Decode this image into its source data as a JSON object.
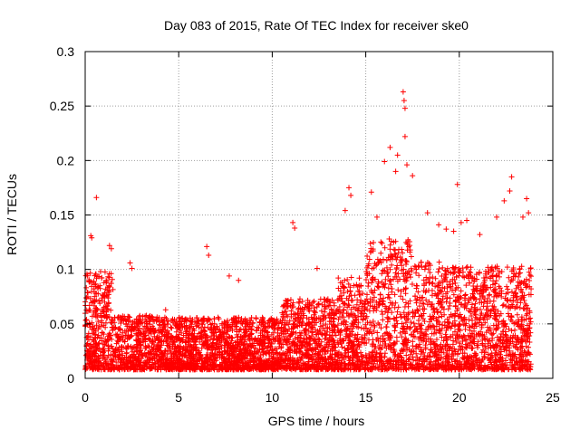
{
  "chart_data": {
    "type": "scatter",
    "title": "Day 083 of 2015, Rate Of TEC Index for receiver ske0",
    "xlabel": "GPS time / hours",
    "ylabel": "ROTI / TECUs",
    "xlim": [
      0,
      25
    ],
    "ylim": [
      0,
      0.3
    ],
    "xticks": [
      0,
      5,
      10,
      15,
      20,
      25
    ],
    "xtick_labels": [
      "0",
      "5",
      "10",
      "15",
      "20",
      "25"
    ],
    "yticks": [
      0,
      0.05,
      0.1,
      0.15,
      0.2,
      0.25,
      0.3
    ],
    "ytick_labels": [
      "0",
      "0.05",
      "0.1",
      "0.15",
      "0.2",
      "0.25",
      "0.3"
    ],
    "grid": true,
    "marker": "+",
    "color": "#ff0000",
    "series": [
      {
        "points": [
          [
            0.3,
            0.131
          ],
          [
            0.35,
            0.129
          ],
          [
            0.6,
            0.166
          ],
          [
            1.3,
            0.122
          ],
          [
            1.4,
            0.119
          ],
          [
            2.4,
            0.106
          ],
          [
            2.5,
            0.101
          ],
          [
            4.3,
            0.063
          ],
          [
            6.5,
            0.121
          ],
          [
            6.6,
            0.113
          ],
          [
            7.7,
            0.094
          ],
          [
            8.2,
            0.09
          ],
          [
            11.1,
            0.143
          ],
          [
            11.2,
            0.138
          ],
          [
            12.4,
            0.101
          ],
          [
            13.9,
            0.154
          ],
          [
            14.1,
            0.175
          ],
          [
            14.2,
            0.168
          ],
          [
            15.3,
            0.171
          ],
          [
            15.6,
            0.148
          ],
          [
            16.0,
            0.199
          ],
          [
            16.3,
            0.212
          ],
          [
            16.6,
            0.19
          ],
          [
            16.7,
            0.205
          ],
          [
            17.0,
            0.263
          ],
          [
            17.05,
            0.255
          ],
          [
            17.1,
            0.248
          ],
          [
            17.1,
            0.222
          ],
          [
            17.2,
            0.196
          ],
          [
            17.5,
            0.186
          ],
          [
            18.3,
            0.152
          ],
          [
            18.9,
            0.141
          ],
          [
            19.3,
            0.137
          ],
          [
            19.7,
            0.135
          ],
          [
            19.9,
            0.178
          ],
          [
            20.1,
            0.143
          ],
          [
            20.4,
            0.145
          ],
          [
            21.1,
            0.132
          ],
          [
            22.0,
            0.148
          ],
          [
            22.4,
            0.163
          ],
          [
            22.7,
            0.172
          ],
          [
            22.8,
            0.185
          ],
          [
            23.4,
            0.148
          ],
          [
            23.6,
            0.165
          ],
          [
            23.7,
            0.152
          ]
        ]
      }
    ]
  }
}
